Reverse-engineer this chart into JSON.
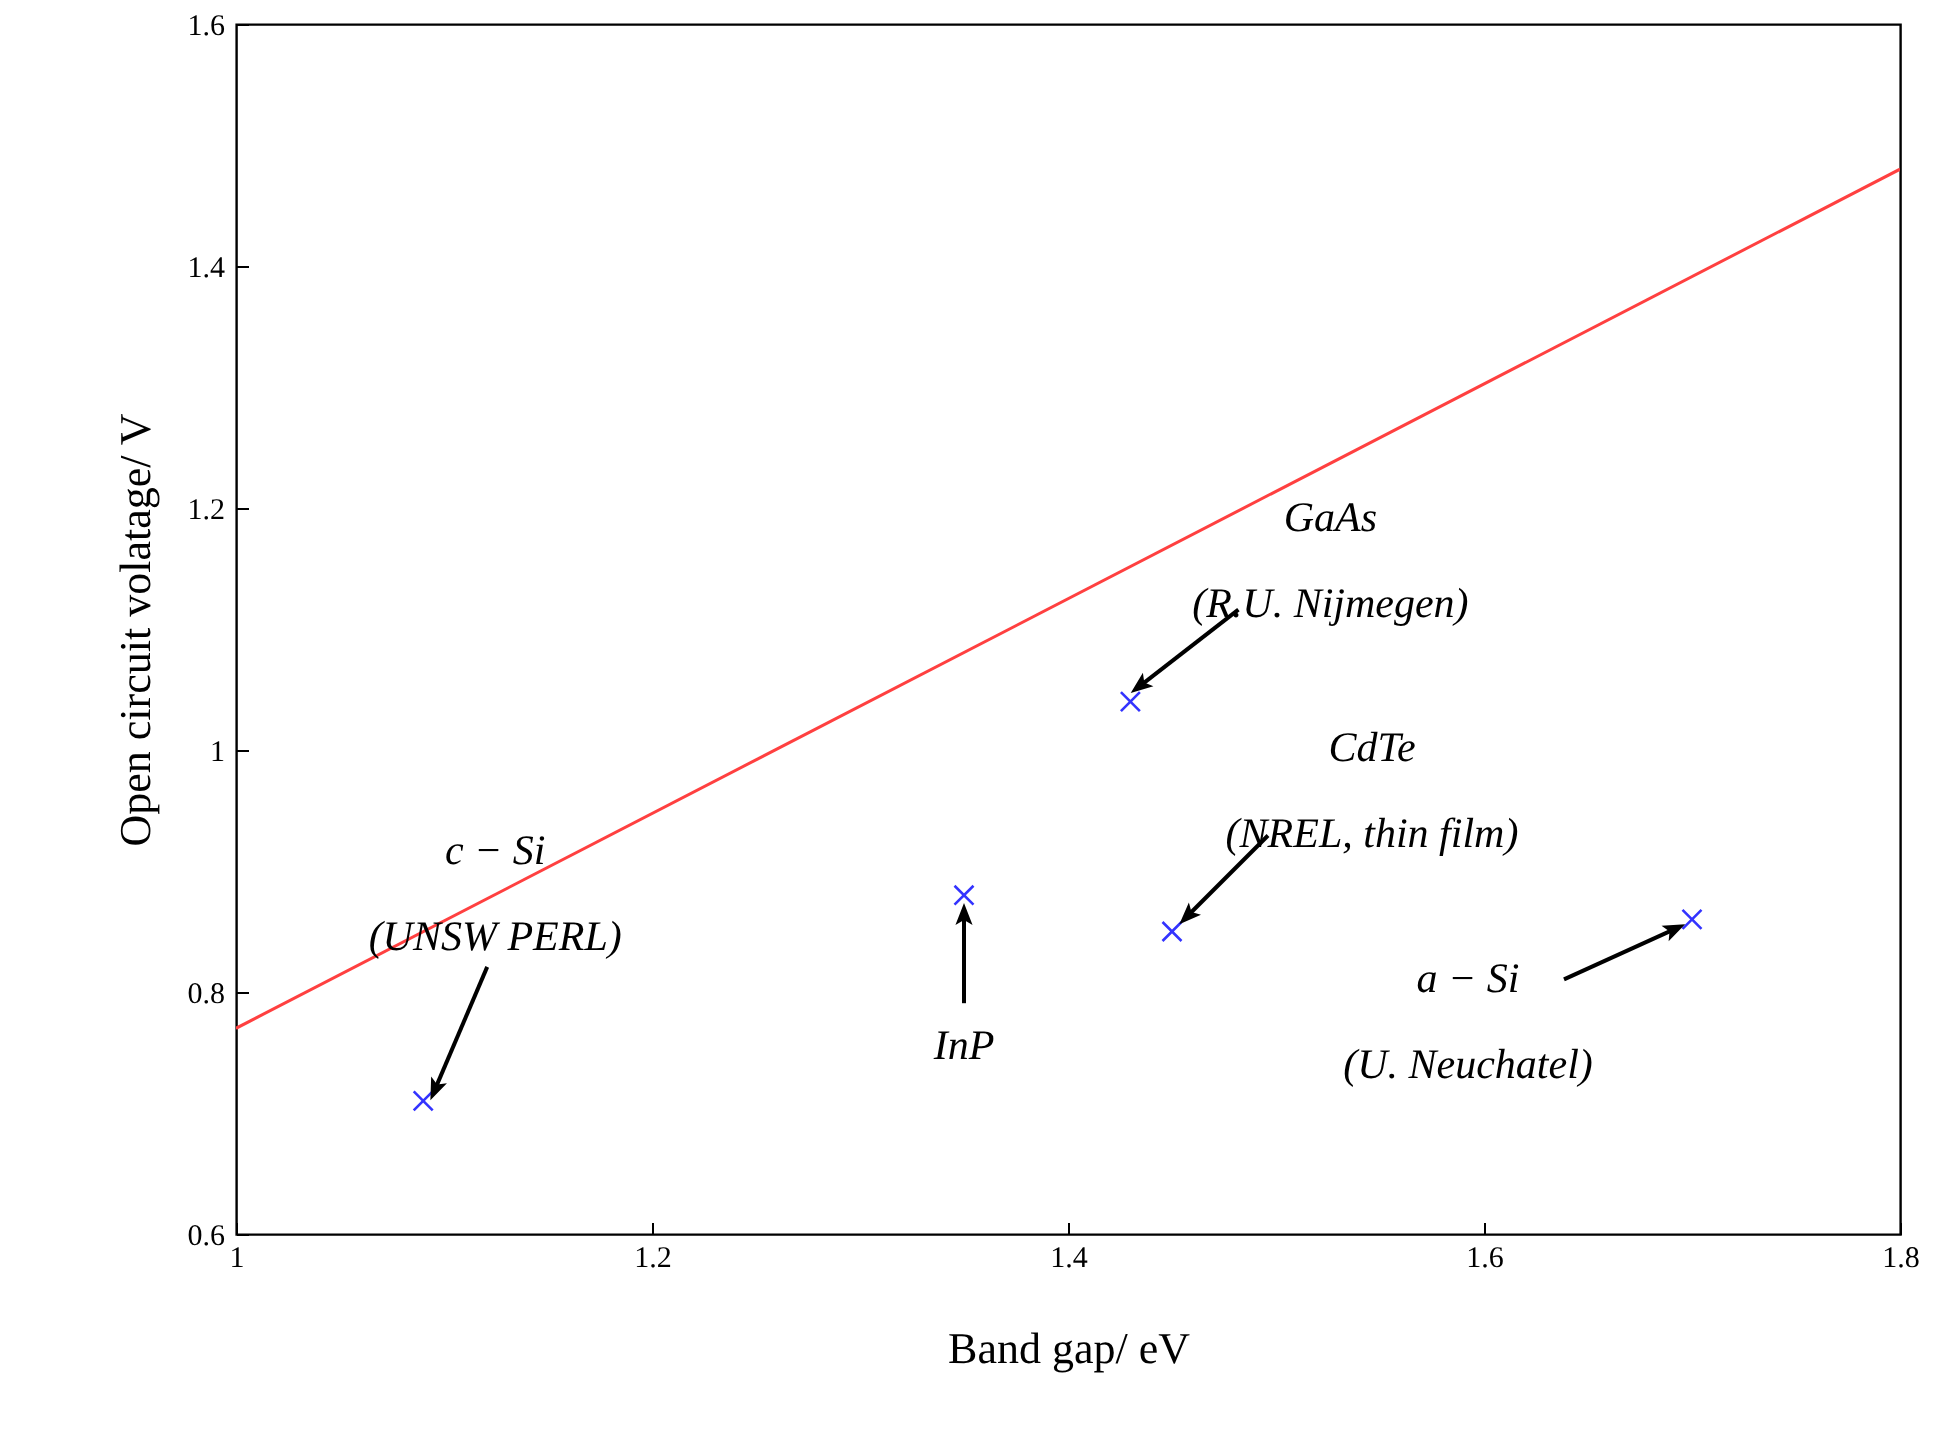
{
  "chart_data": {
    "type": "scatter",
    "xlabel": "Band gap/ eV",
    "ylabel": "Open circuit volatage/ V",
    "xlim": [
      1,
      1.8
    ],
    "xticks": [
      1,
      1.2,
      1.4,
      1.6,
      1.8
    ],
    "ylim": [
      0.6,
      1.6
    ],
    "yticks": [
      0.6,
      0.8,
      1,
      1.2,
      1.4,
      1.6
    ],
    "grid": false,
    "marker": "cross",
    "series": [
      {
        "type": "line",
        "color": "#ff4040",
        "x": [
          1,
          1.8
        ],
        "values": [
          0.77,
          1.48
        ],
        "line_style": "solid",
        "marker": "none"
      },
      {
        "color": "#3333ff",
        "x": [
          1.09,
          1.35,
          1.43,
          1.45,
          1.7
        ],
        "values": [
          0.71,
          0.88,
          1.04,
          0.85,
          0.86
        ]
      }
    ],
    "annotations": [
      {
        "text": "c − Si\n(UNSW  PERL)",
        "x": 1.09,
        "y": 0.71
      },
      {
        "text": "InP",
        "x": 1.35,
        "y": 0.88
      },
      {
        "text": "GaAs\n(R.U. Nijmegen)",
        "x": 1.43,
        "y": 1.04
      },
      {
        "text": "CdTe\n(NREL, thin  film)",
        "x": 1.45,
        "y": 0.85
      },
      {
        "text": "a − Si\n(U. Neuchatel)",
        "x": 1.7,
        "y": 0.86
      }
    ]
  }
}
